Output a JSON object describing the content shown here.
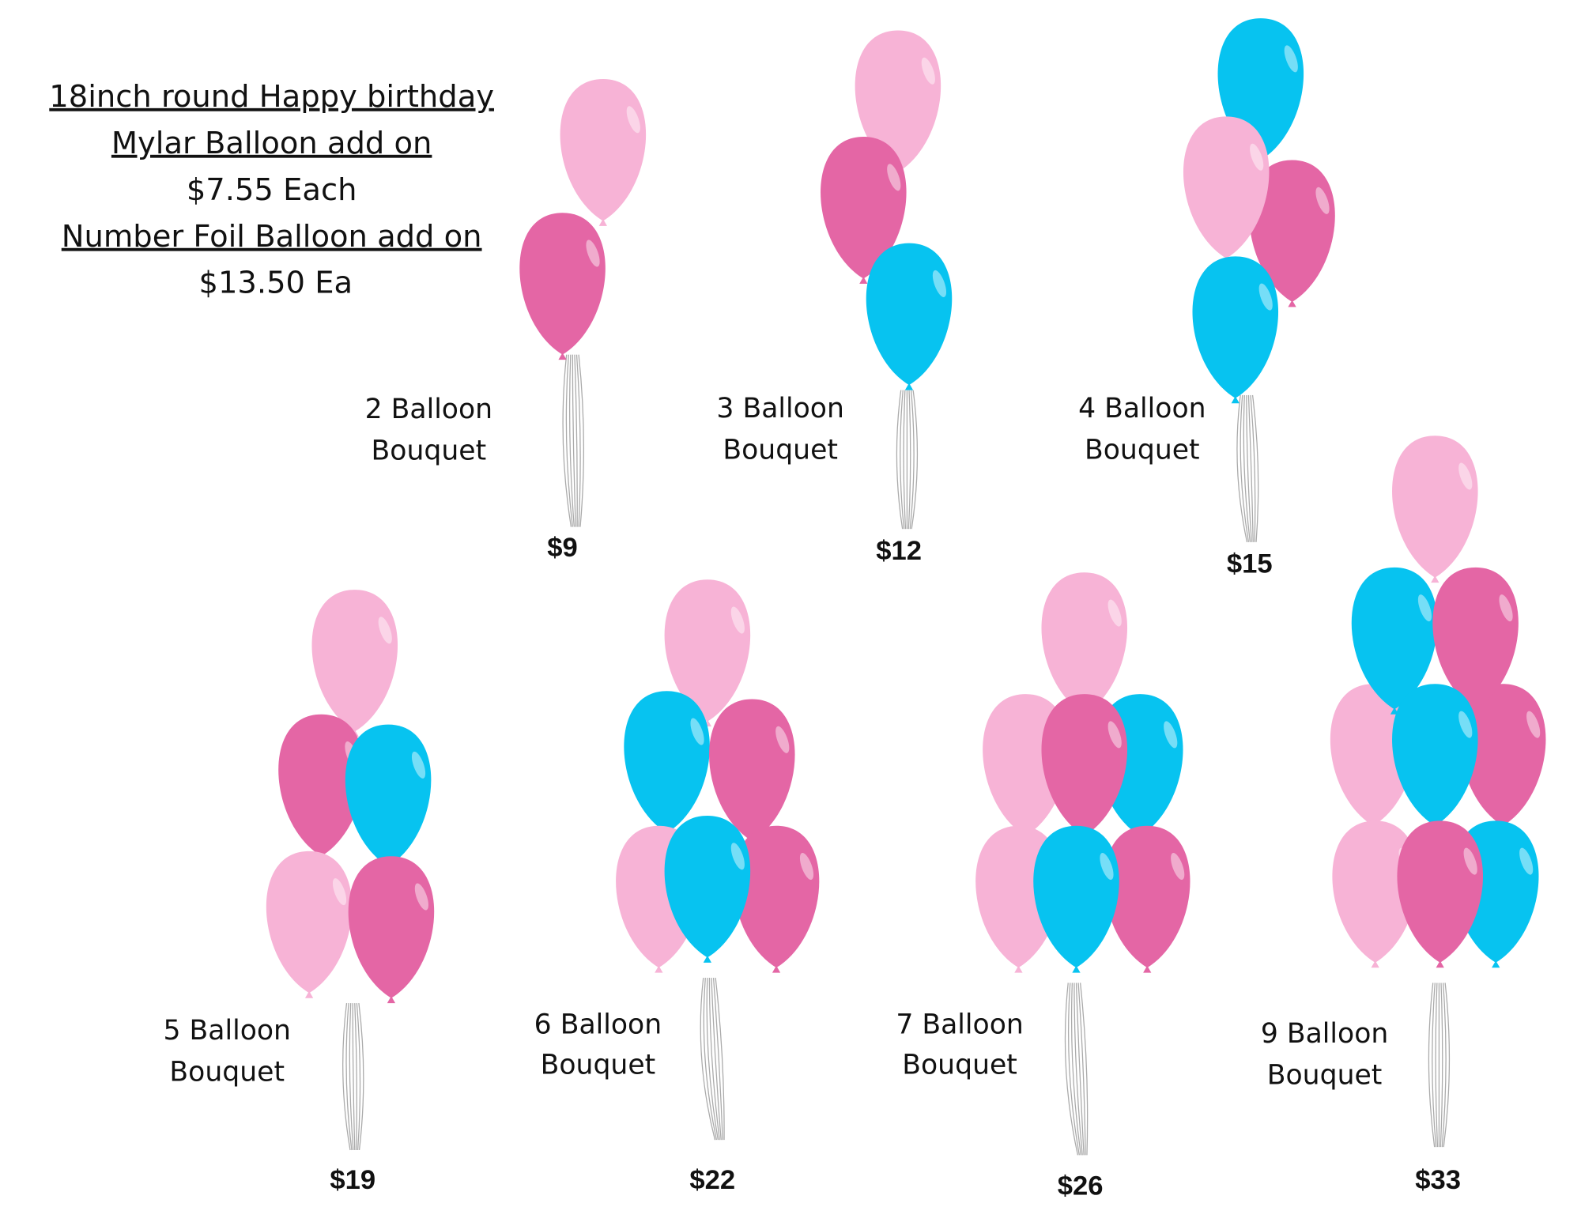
{
  "addons": {
    "lines": [
      "18inch round Happy birthday ",
      "Mylar Balloon add on",
      "$7.55 Each",
      "Number Foil Balloon add on",
      "$13.50 Ea"
    ]
  },
  "bouquets": [
    {
      "label": [
        "2 Balloon",
        "Bouquet"
      ],
      "price": "$9"
    },
    {
      "label": [
        "3 Balloon",
        "Bouquet"
      ],
      "price": "$12"
    },
    {
      "label": [
        "4 Balloon",
        "Bouquet"
      ],
      "price": "$15"
    },
    {
      "label": [
        "5 Balloon",
        "Bouquet"
      ],
      "price": "$19"
    },
    {
      "label": [
        "6 Balloon",
        "Bouquet"
      ],
      "price": "$22"
    },
    {
      "label": [
        "7 Balloon",
        "Bouquet"
      ],
      "price": "$26"
    },
    {
      "label": [
        "9 Balloon",
        "Bouquet"
      ],
      "price": "$33"
    }
  ]
}
